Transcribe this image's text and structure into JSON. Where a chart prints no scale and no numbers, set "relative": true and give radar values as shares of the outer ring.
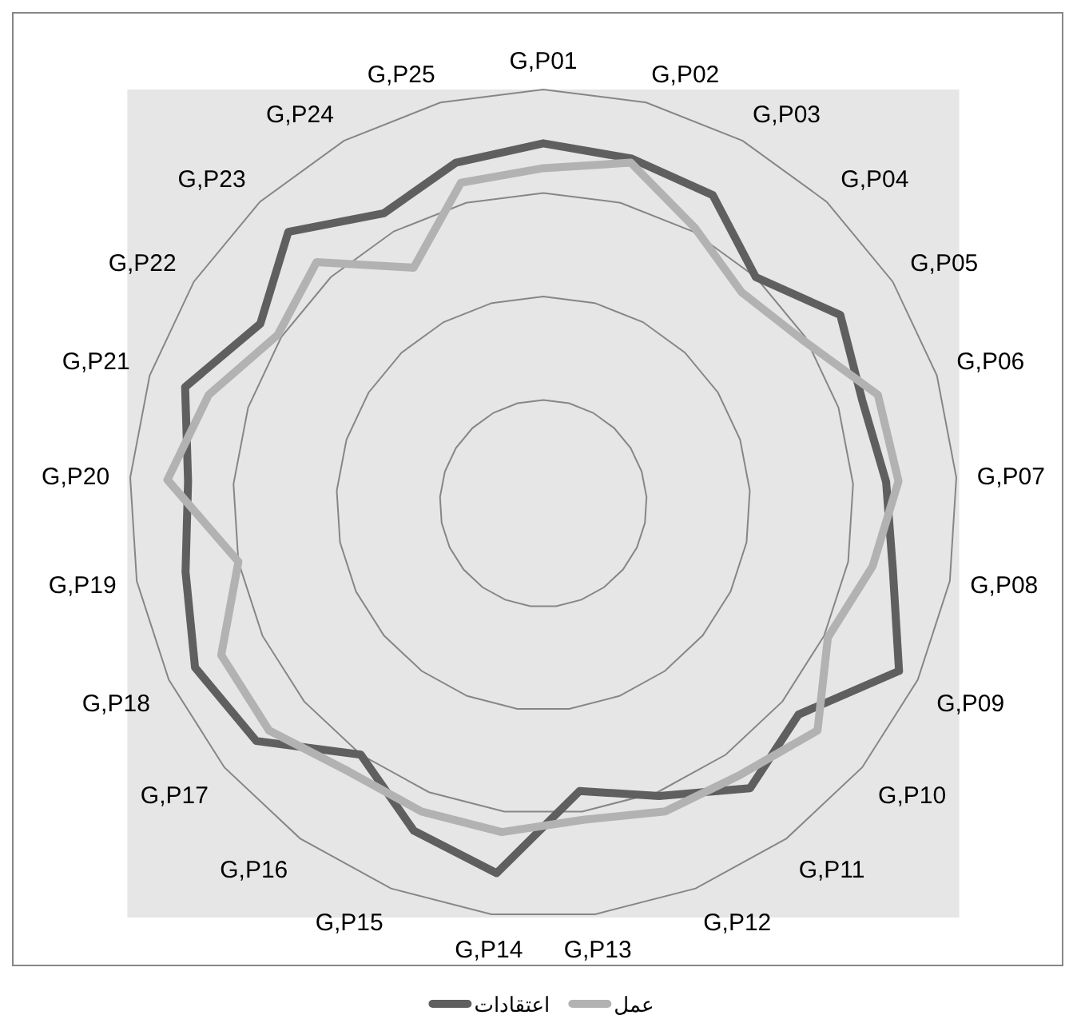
{
  "chart_data": {
    "type": "radar",
    "relative": true,
    "grid": true,
    "legend": "bottom",
    "line_style": "solid",
    "marker": "none",
    "categories": [
      "G,P01",
      "G,P02",
      "G,P03",
      "G,P04",
      "G,P05",
      "G,P06",
      "G,P07",
      "G,P08",
      "G,P09",
      "G,P10",
      "G,P11",
      "G,P12",
      "G,P13",
      "G,P14",
      "G,P15",
      "G,P16",
      "G,P17",
      "G,P18",
      "G,P19",
      "G,P20",
      "G,P21",
      "G,P22",
      "G,P23",
      "G,P24",
      "G,P25"
    ],
    "series": [
      {
        "name": "اعتقادات",
        "color": "#5f5f5f",
        "values": [
          0.87,
          0.86,
          0.85,
          0.75,
          0.85,
          0.81,
          0.83,
          0.86,
          0.95,
          0.8,
          0.85,
          0.76,
          0.7,
          0.9,
          0.85,
          0.75,
          0.9,
          0.93,
          0.88,
          0.86,
          0.91,
          0.81,
          0.9,
          0.8,
          0.85
        ]
      },
      {
        "name": "عمل",
        "color": "#b2b2b2",
        "values": [
          0.81,
          0.85,
          0.76,
          0.7,
          0.74,
          0.85,
          0.86,
          0.81,
          0.76,
          0.86,
          0.81,
          0.8,
          0.77,
          0.8,
          0.8,
          0.8,
          0.86,
          0.86,
          0.75,
          0.91,
          0.85,
          0.76,
          0.8,
          0.65,
          0.8
        ]
      }
    ]
  }
}
